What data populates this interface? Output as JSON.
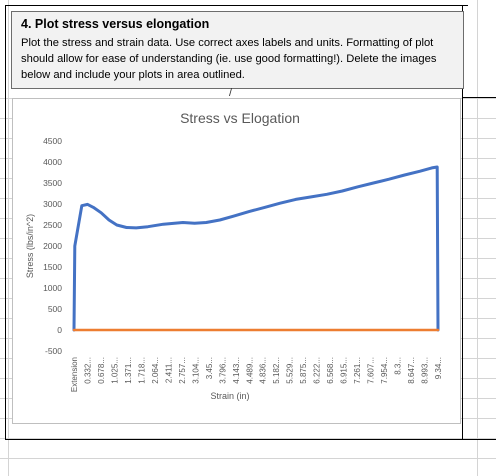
{
  "instructions": {
    "title": "4. Plot stress versus elongation",
    "body": "Plot the stress and strain data. Use correct axes labels and units. Formatting of plot should allow for ease of understanding (ie. use good formatting!). Delete the images below and include your plots in area outlined."
  },
  "chart_data": {
    "type": "line",
    "title": "Stress vs Elogation",
    "xlabel": "Strain (in)",
    "ylabel": "Stress (lbs/in^2)",
    "ylim": [
      -500,
      4500
    ],
    "y_ticks": [
      "4500",
      "4000",
      "3500",
      "3000",
      "2500",
      "2000",
      "1500",
      "1000",
      "500",
      "0",
      "-500"
    ],
    "categories": [
      "Extension",
      "0.332...",
      "0.678...",
      "1.025...",
      "1.371...",
      "1.718...",
      "2.064...",
      "2.411...",
      "2.757...",
      "3.104...",
      "3.45...",
      "3.796...",
      "4.143...",
      "4.489...",
      "4.836...",
      "5.182...",
      "5.529...",
      "5.875...",
      "6.222...",
      "6.568...",
      "6.915...",
      "7.261...",
      "7.607...",
      "7.954...",
      "8.3...",
      "8.647...",
      "8.993...",
      "9.34..."
    ],
    "grid": false,
    "series": [
      {
        "name": "",
        "color": "#4472c4",
        "x": [
          0,
          0.02,
          0.2,
          0.35,
          0.5,
          0.7,
          0.9,
          1.1,
          1.35,
          1.6,
          1.9,
          2.3,
          2.8,
          3.1,
          3.4,
          3.75,
          4.1,
          4.5,
          4.9,
          5.3,
          5.7,
          6.1,
          6.5,
          6.9,
          7.3,
          7.7,
          8.1,
          8.5,
          8.9,
          9.2,
          9.34,
          9.36
        ],
        "y": [
          0,
          2000,
          2960,
          2990,
          2920,
          2790,
          2620,
          2500,
          2440,
          2430,
          2460,
          2520,
          2560,
          2540,
          2560,
          2620,
          2710,
          2820,
          2920,
          3020,
          3110,
          3170,
          3230,
          3310,
          3410,
          3500,
          3590,
          3690,
          3780,
          3860,
          3880,
          0
        ]
      },
      {
        "name": "",
        "color": "#ed7d31",
        "x": [
          0,
          9.36
        ],
        "y": [
          0,
          0
        ]
      }
    ]
  }
}
